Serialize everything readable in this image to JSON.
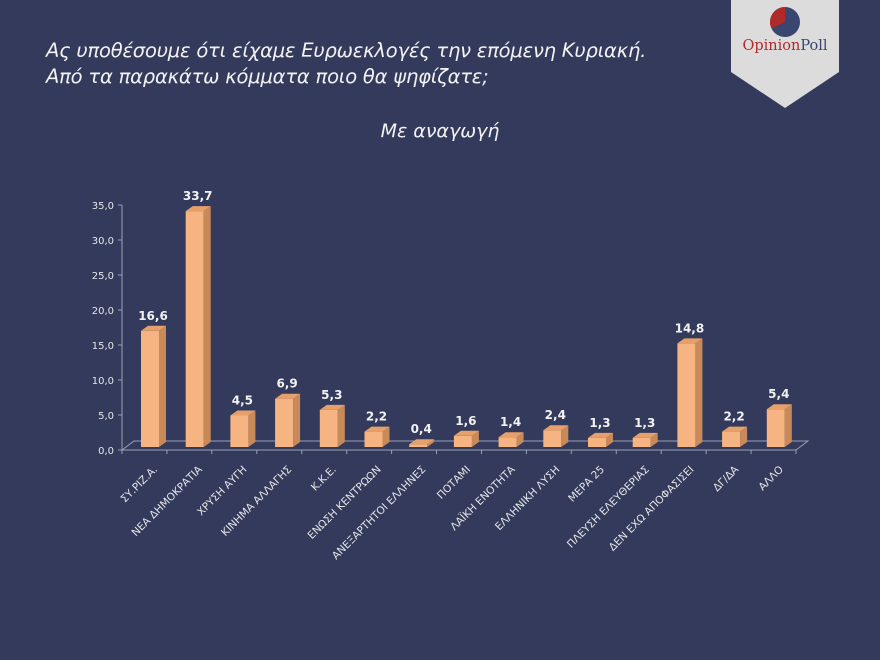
{
  "header": {
    "title_line1": "Ας υποθέσουμε ότι είχαμε Ευρωεκλογές την επόμενη Κυριακή.",
    "title_line2": "Από τα παρακάτω κόμματα ποιο θα ψηφίζατε;",
    "subtitle": "Με αναγωγή"
  },
  "logo": {
    "text_part1": "Opinion",
    "text_part2": "Poll",
    "colors": {
      "red": "#b02a2a",
      "navy": "#3a4670",
      "banner": "#dcdcdc"
    }
  },
  "colors": {
    "background": "#333a5c",
    "bar_front": "#f5b482",
    "bar_side": "#c98a5a",
    "bar_top": "#e8a06a",
    "axis": "#9aa0b4"
  },
  "chart_data": {
    "type": "bar",
    "title": "Με αναγωγή",
    "xlabel": "",
    "ylabel": "",
    "ylim": [
      0,
      35
    ],
    "yticks": [
      "0,0",
      "5,0",
      "10,0",
      "15,0",
      "20,0",
      "25,0",
      "30,0",
      "35,0"
    ],
    "grid": false,
    "legend": "none",
    "categories": [
      "ΣΥ.ΡΙΖ.Α.",
      "ΝΕΑ ΔΗΜΟΚΡΑΤΙΑ",
      "ΧΡΥΣΗ ΑΥΓΗ",
      "ΚΙΝΗΜΑ ΑΛΛΑΓΗΣ",
      "Κ.Κ.Ε.",
      "ΕΝΩΣΗ ΚΕΝΤΡΩΩΝ",
      "ΑΝΕΞΑΡΤΗΤΟΙ ΕΛΛΗΝΕΣ",
      "ΠΟΤΑΜΙ",
      "ΛΑΪΚΗ ΕΝΟΤΗΤΑ",
      "ΕΛΛΗΝΙΚΗ ΛΥΣΗ",
      "ΜΕΡΑ 25",
      "ΠΛΕΥΣΗ ΕΛΕΥΘΕΡΙΑΣ",
      "ΔΕΝ ΕΧΩ ΑΠΟΦΑΣΙΣΕΙ",
      "ΔΓ/ΔΑ",
      "ΑΛΛΟ"
    ],
    "values": [
      16.6,
      33.7,
      4.5,
      6.9,
      5.3,
      2.2,
      0.4,
      1.6,
      1.4,
      2.4,
      1.3,
      1.3,
      14.8,
      2.2,
      5.4
    ],
    "value_labels": [
      "16,6",
      "33,7",
      "4,5",
      "6,9",
      "5,3",
      "2,2",
      "0,4",
      "1,6",
      "1,4",
      "2,4",
      "1,3",
      "1,3",
      "14,8",
      "2,2",
      "5,4"
    ]
  }
}
